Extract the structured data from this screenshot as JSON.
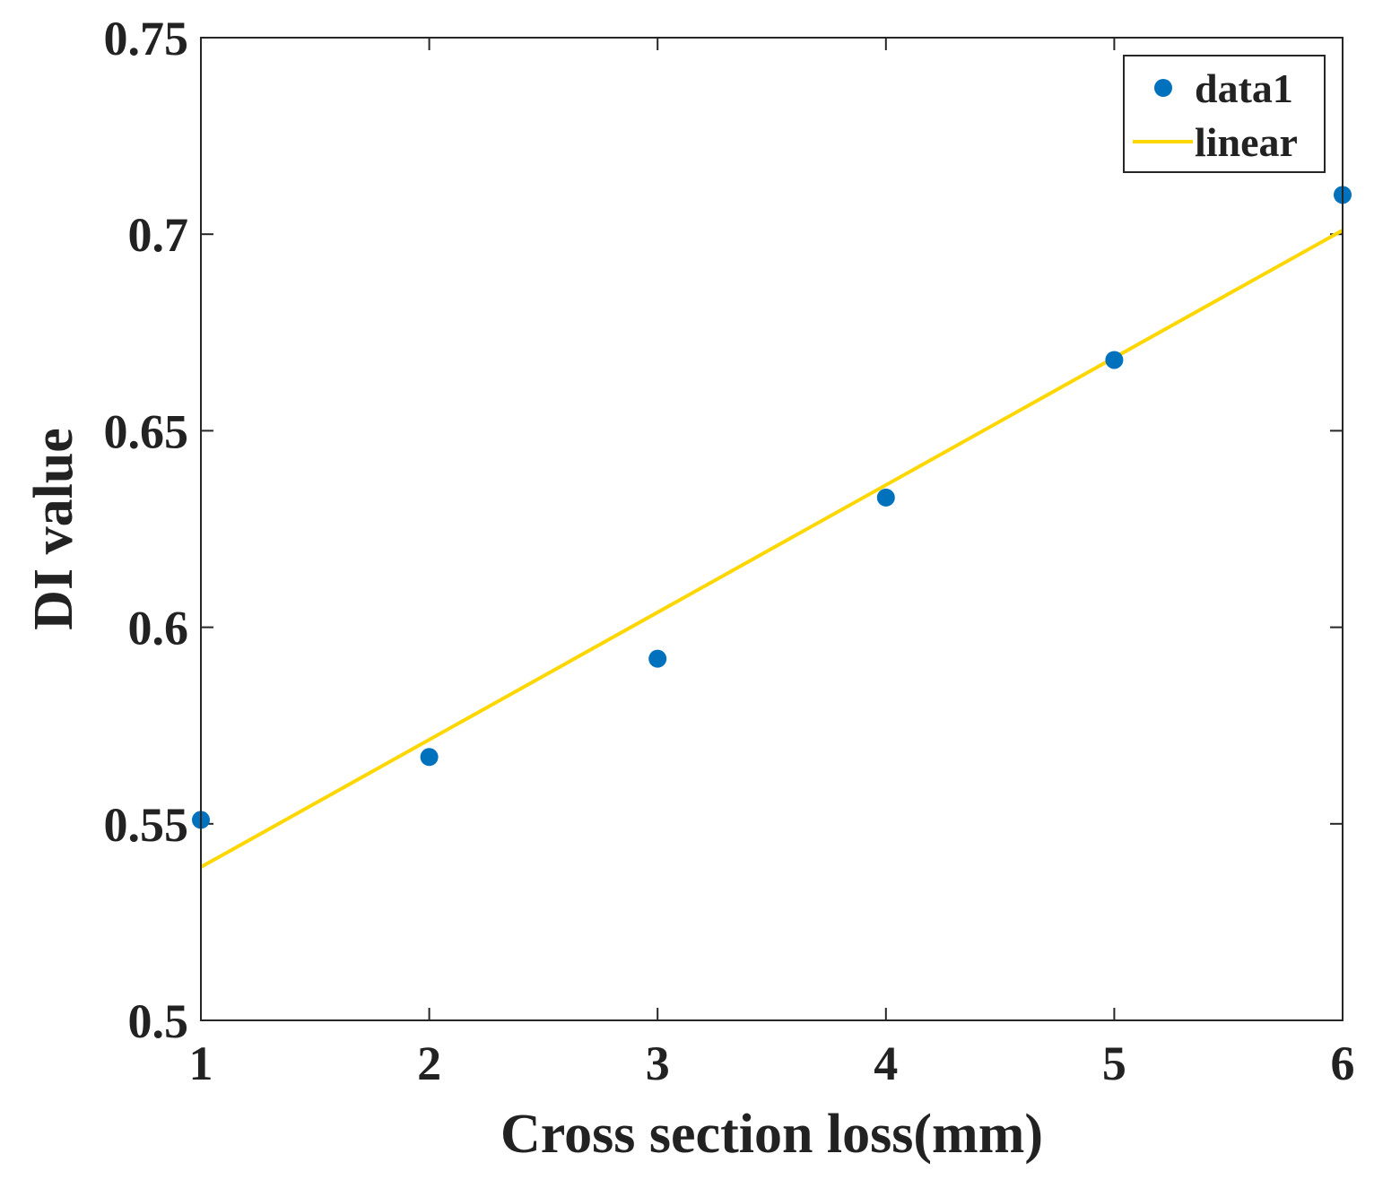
{
  "chart_data": {
    "type": "scatter",
    "title": "",
    "xlabel": "Cross section loss(mm)",
    "ylabel": "DI value",
    "xlim": [
      1,
      6
    ],
    "ylim": [
      0.5,
      0.75
    ],
    "x_ticks": [
      1,
      2,
      3,
      4,
      5,
      6
    ],
    "x_tick_labels": [
      "1",
      "2",
      "3",
      "4",
      "5",
      "6"
    ],
    "y_ticks": [
      0.5,
      0.55,
      0.6,
      0.65,
      0.7,
      0.75
    ],
    "y_tick_labels": [
      "0.5",
      "0.55",
      "0.6",
      "0.65",
      "0.7",
      "0.75"
    ],
    "grid": false,
    "legend_position": "top-right",
    "series": [
      {
        "name": "data1",
        "kind": "scatter",
        "color": "#0072BD",
        "x": [
          1,
          2,
          3,
          4,
          5,
          6
        ],
        "y": [
          0.551,
          0.567,
          0.592,
          0.633,
          0.668,
          0.71
        ]
      },
      {
        "name": "linear",
        "kind": "line",
        "color": "#FFD700",
        "x": [
          1,
          6
        ],
        "y": [
          0.539,
          0.701
        ]
      }
    ]
  }
}
